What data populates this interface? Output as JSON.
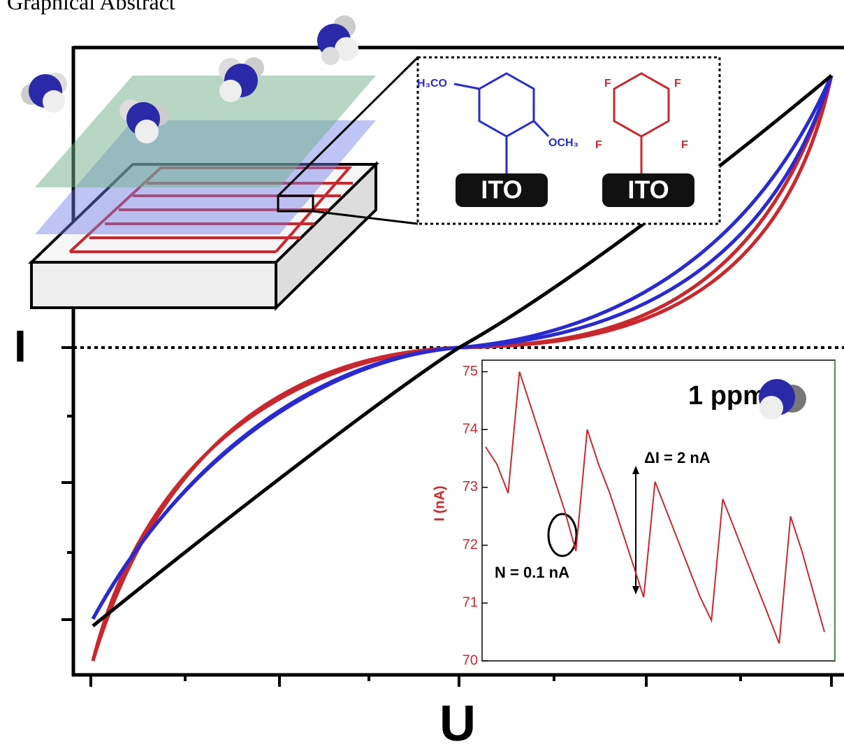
{
  "title": "Graphical Abstract",
  "main_plot": {
    "y_label": "I",
    "x_label": "U"
  },
  "schematic": {
    "molecule_1": {
      "left_group": "H₃CO",
      "right_group": "OCH₃",
      "substrate": "ITO"
    },
    "molecule_2": {
      "groups": [
        "F",
        "F",
        "F",
        "F"
      ],
      "substrate": "ITO"
    }
  },
  "chart_data": {
    "type": "line",
    "ylabel": "I (nA)",
    "categories": [
      null,
      null,
      null,
      null,
      null,
      null,
      null,
      null,
      null,
      null,
      null,
      null,
      null,
      null,
      null,
      null,
      null,
      null,
      null,
      null,
      null,
      null,
      null,
      null,
      null,
      null,
      null,
      null,
      null,
      null,
      null
    ],
    "values": [
      73.7,
      73.4,
      72.9,
      75.0,
      74.4,
      73.8,
      73.2,
      72.6,
      71.9,
      74.0,
      73.4,
      72.9,
      72.3,
      71.7,
      71.1,
      73.1,
      72.6,
      72.1,
      71.6,
      71.1,
      70.7,
      72.8,
      72.3,
      71.8,
      71.3,
      70.8,
      70.3,
      72.5,
      71.9,
      71.2,
      70.5
    ],
    "color": "#c8282d",
    "ylim": [
      70,
      75.2
    ],
    "yticks": [
      70,
      71,
      72,
      73,
      74,
      75
    ],
    "annotations": [
      "1 ppm",
      "ΔI = 2 nA",
      "N = 0.1 nA"
    ]
  }
}
